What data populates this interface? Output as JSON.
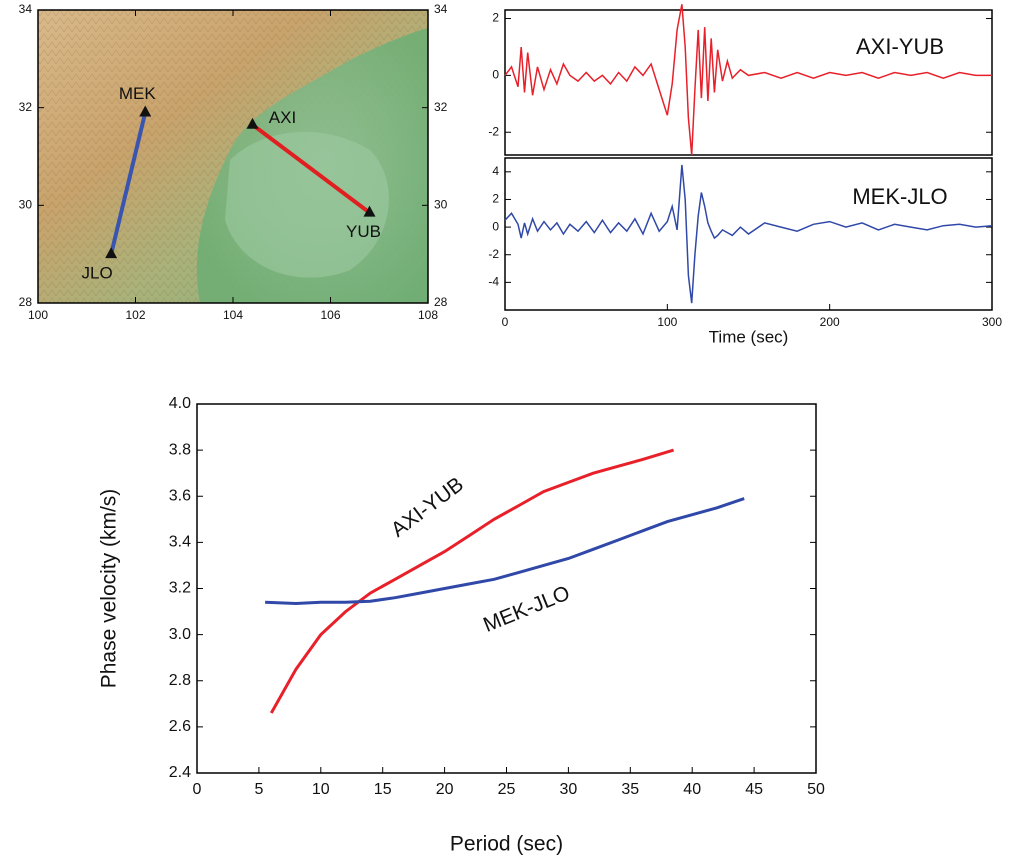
{
  "chart_data": [
    {
      "type": "map",
      "xlim": [
        100,
        108
      ],
      "ylim": [
        28,
        34
      ],
      "xticks": [
        100,
        102,
        104,
        106,
        108
      ],
      "yticks": [
        28,
        30,
        32,
        34
      ],
      "stations": [
        {
          "name": "MEK",
          "lon": 102.2,
          "lat": 31.9
        },
        {
          "name": "AXI",
          "lon": 104.4,
          "lat": 31.65
        },
        {
          "name": "YUB",
          "lon": 106.8,
          "lat": 29.85
        },
        {
          "name": "JLO",
          "lon": 101.5,
          "lat": 29.0
        }
      ],
      "paths": [
        {
          "stations": [
            "MEK",
            "JLO"
          ],
          "color": "#3a55b0"
        },
        {
          "stations": [
            "AXI",
            "YUB"
          ],
          "color": "#e02020"
        }
      ]
    },
    {
      "type": "line",
      "xlim": [
        0,
        300
      ],
      "ylim": [
        -2.8,
        2.3
      ],
      "yticks": [
        -2,
        0,
        2
      ],
      "x": [
        0,
        4,
        8,
        10,
        12,
        14,
        17,
        20,
        24,
        28,
        32,
        36,
        40,
        45,
        50,
        55,
        60,
        65,
        70,
        75,
        80,
        85,
        90,
        95,
        100,
        103,
        106,
        109,
        111,
        113,
        115,
        117,
        119,
        121,
        123,
        125,
        127,
        129,
        131,
        134,
        137,
        140,
        145,
        150,
        160,
        170,
        180,
        190,
        200,
        210,
        220,
        230,
        240,
        250,
        260,
        270,
        280,
        290,
        300
      ],
      "series": [
        {
          "name": "AXI-YUB",
          "color": "#e8202a",
          "values": [
            0,
            0.3,
            -0.4,
            1.0,
            -0.6,
            0.8,
            -0.7,
            0.3,
            -0.5,
            0.2,
            -0.3,
            0.4,
            0,
            -0.2,
            0.1,
            -0.2,
            0,
            -0.3,
            0.1,
            -0.2,
            0.3,
            0,
            0.4,
            -0.5,
            -1.4,
            -0.3,
            1.6,
            2.5,
            1.0,
            -1.5,
            -2.8,
            -0.5,
            1.6,
            -0.8,
            1.7,
            -0.9,
            1.3,
            -0.6,
            0.9,
            -0.2,
            0.5,
            -0.1,
            0.2,
            0,
            0.1,
            -0.1,
            0.1,
            -0.1,
            0.1,
            0,
            0.1,
            -0.1,
            0.1,
            0,
            0.1,
            -0.1,
            0.1,
            0,
            0
          ]
        }
      ]
    },
    {
      "type": "line",
      "xlim": [
        0,
        300
      ],
      "ylim": [
        -6,
        5
      ],
      "xticks": [
        0,
        100,
        200,
        300
      ],
      "yticks": [
        -4,
        -2,
        0,
        2,
        4
      ],
      "xlabel": "Time (sec)",
      "x": [
        0,
        4,
        8,
        10,
        12,
        14,
        17,
        20,
        24,
        28,
        32,
        36,
        40,
        45,
        50,
        55,
        60,
        65,
        70,
        75,
        80,
        85,
        90,
        95,
        100,
        103,
        106,
        109,
        111,
        113,
        115,
        117,
        119,
        121,
        123,
        125,
        127,
        129,
        131,
        134,
        137,
        140,
        145,
        150,
        160,
        170,
        180,
        190,
        200,
        210,
        220,
        230,
        240,
        250,
        260,
        270,
        280,
        290,
        300
      ],
      "series": [
        {
          "name": "MEK-JLO",
          "color": "#3048a8",
          "values": [
            0.5,
            1.0,
            0.2,
            -0.8,
            0.3,
            -0.5,
            0.6,
            -0.3,
            0.4,
            -0.2,
            0.3,
            -0.5,
            0.2,
            -0.3,
            0.4,
            -0.4,
            0.5,
            -0.4,
            0.3,
            -0.3,
            0.6,
            -0.5,
            1.0,
            -0.3,
            0.4,
            1.5,
            -0.2,
            4.5,
            2.0,
            -3.5,
            -5.5,
            -2.0,
            0.8,
            2.5,
            1.5,
            0.3,
            -0.3,
            -0.8,
            -0.6,
            -0.2,
            -0.4,
            -0.6,
            0,
            -0.5,
            0.3,
            0,
            -0.3,
            0.2,
            0.4,
            0,
            0.3,
            -0.2,
            0.2,
            0,
            -0.2,
            0.1,
            0.2,
            0,
            0.1
          ]
        }
      ]
    },
    {
      "type": "line",
      "xlabel": "Period (sec)",
      "ylabel": "Phase velocity (km/s)",
      "xlim": [
        0,
        50
      ],
      "ylim": [
        2.4,
        4.0
      ],
      "xticks": [
        0,
        5,
        10,
        15,
        20,
        25,
        30,
        35,
        40,
        45,
        50
      ],
      "yticks": [
        2.4,
        2.6,
        2.8,
        {
          "value": 3,
          "label": "3.0"
        },
        3.2,
        3.4,
        3.6,
        3.8,
        {
          "value": 4,
          "label": "4.0"
        }
      ],
      "series": [
        {
          "name": "AXI-YUB",
          "color": "#e8202a",
          "x": [
            6,
            8,
            10,
            12,
            14,
            16,
            18,
            20,
            22,
            24,
            26,
            28,
            30,
            32,
            34,
            36,
            38.5
          ],
          "values": [
            2.66,
            2.85,
            3.0,
            3.1,
            3.18,
            3.24,
            3.3,
            3.36,
            3.43,
            3.5,
            3.56,
            3.62,
            3.66,
            3.7,
            3.73,
            3.76,
            3.8
          ]
        },
        {
          "name": "MEK-JLO",
          "color": "#3048a8",
          "x": [
            5.5,
            8,
            10,
            12,
            14,
            16,
            18,
            20,
            22,
            24,
            26,
            28,
            30,
            32,
            34,
            36,
            38,
            40,
            42,
            44.2
          ],
          "values": [
            3.14,
            3.135,
            3.14,
            3.14,
            3.145,
            3.16,
            3.18,
            3.2,
            3.22,
            3.24,
            3.27,
            3.3,
            3.33,
            3.37,
            3.41,
            3.45,
            3.49,
            3.52,
            3.55,
            3.59
          ]
        }
      ]
    }
  ]
}
